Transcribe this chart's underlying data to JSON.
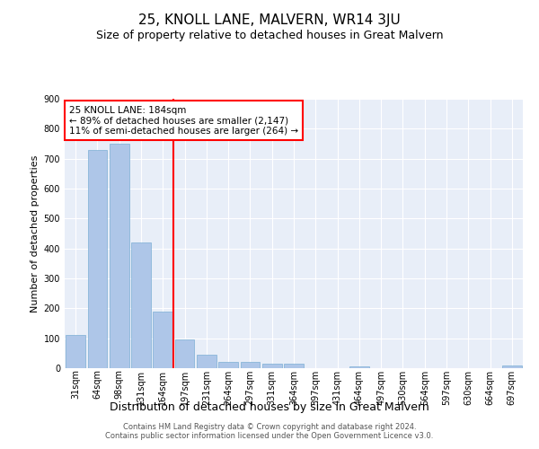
{
  "title": "25, KNOLL LANE, MALVERN, WR14 3JU",
  "subtitle": "Size of property relative to detached houses in Great Malvern",
  "xlabel": "Distribution of detached houses by size in Great Malvern",
  "ylabel": "Number of detached properties",
  "categories": [
    "31sqm",
    "64sqm",
    "98sqm",
    "131sqm",
    "164sqm",
    "197sqm",
    "231sqm",
    "264sqm",
    "297sqm",
    "331sqm",
    "364sqm",
    "397sqm",
    "431sqm",
    "464sqm",
    "497sqm",
    "530sqm",
    "564sqm",
    "597sqm",
    "630sqm",
    "664sqm",
    "697sqm"
  ],
  "values": [
    110,
    730,
    750,
    420,
    190,
    95,
    45,
    20,
    20,
    15,
    15,
    0,
    0,
    5,
    0,
    0,
    0,
    0,
    0,
    0,
    8
  ],
  "bar_color": "#aec6e8",
  "bar_edge_color": "#7bafd4",
  "vline_color": "red",
  "vline_pos": 4.5,
  "annotation_text": "25 KNOLL LANE: 184sqm\n← 89% of detached houses are smaller (2,147)\n11% of semi-detached houses are larger (264) →",
  "annotation_box_color": "white",
  "annotation_box_edge": "red",
  "ylim": [
    0,
    900
  ],
  "yticks": [
    0,
    100,
    200,
    300,
    400,
    500,
    600,
    700,
    800,
    900
  ],
  "background_color": "#e8eef8",
  "footer_text": "Contains HM Land Registry data © Crown copyright and database right 2024.\nContains public sector information licensed under the Open Government Licence v3.0.",
  "title_fontsize": 11,
  "subtitle_fontsize": 9,
  "ylabel_fontsize": 8,
  "xlabel_fontsize": 9,
  "tick_fontsize": 7,
  "annotation_fontsize": 7.5,
  "footer_fontsize": 6
}
